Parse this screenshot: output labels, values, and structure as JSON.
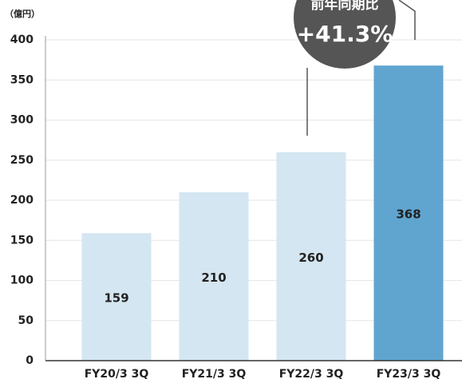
{
  "chart_data": {
    "type": "bar",
    "y_axis_label": "（億円）",
    "categories": [
      "FY20/3 3Q",
      "FY21/3 3Q",
      "FY22/3 3Q",
      "FY23/3 3Q"
    ],
    "values": [
      159,
      210,
      260,
      368
    ],
    "colors": [
      "#d4e6f1",
      "#d4e6f1",
      "#d4e6f1",
      "#5fa5d0"
    ],
    "ylim": [
      0,
      400
    ],
    "yticks": [
      0,
      50,
      100,
      150,
      200,
      250,
      300,
      350,
      400
    ],
    "grid": true,
    "annotation": {
      "label": "前年同期比",
      "value": "+41.3%"
    }
  }
}
